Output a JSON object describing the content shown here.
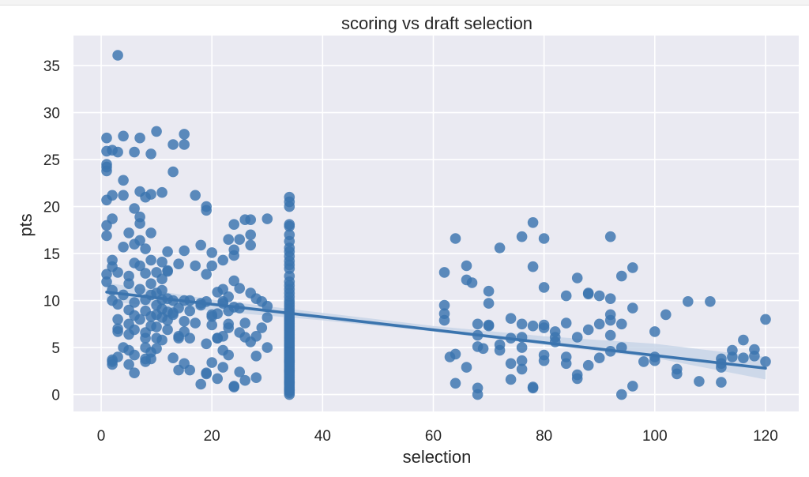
{
  "chart_data": {
    "type": "scatter",
    "title": "scoring vs draft selection",
    "xlabel": "selection",
    "ylabel": "pts",
    "xlim": [
      -5,
      126
    ],
    "ylim": [
      -1.8,
      38.2
    ],
    "xticks": [
      0,
      20,
      40,
      60,
      80,
      100,
      120
    ],
    "yticks": [
      0,
      5,
      10,
      15,
      20,
      25,
      30,
      35
    ],
    "grid": true,
    "colors": {
      "background": "#eaeaf2",
      "grid": "#ffffff",
      "points": "#3b74ae",
      "regression_line": "#3b74ae",
      "confidence_band": "#c6d3e6"
    },
    "regression": {
      "x": [
        1,
        120
      ],
      "y": [
        10.9,
        2.8
      ]
    },
    "confidence_band": {
      "x": [
        1,
        20,
        40,
        60,
        80,
        100,
        120
      ],
      "lower": [
        9.9,
        8.9,
        7.9,
        6.7,
        5.3,
        3.9,
        1.6
      ],
      "upper": [
        11.9,
        10.1,
        8.7,
        7.3,
        6.2,
        5.4,
        4.0
      ]
    },
    "series": [
      {
        "x": [
          3,
          1,
          2,
          4,
          1,
          1,
          1,
          2,
          1,
          2,
          1,
          1,
          2,
          1,
          2,
          1,
          2,
          2,
          3,
          3,
          3,
          3,
          2,
          2,
          3,
          2,
          3,
          1,
          3,
          4,
          4,
          4,
          4,
          4,
          5,
          5,
          5,
          5,
          5,
          5,
          5,
          5,
          6,
          6,
          6,
          6,
          6,
          6,
          6,
          6,
          6,
          7,
          7,
          7,
          7,
          7,
          7,
          7,
          7,
          8,
          8,
          8,
          8,
          8,
          8,
          8,
          8,
          8,
          9,
          9,
          9,
          9,
          9,
          9,
          9,
          9,
          9,
          10,
          10,
          10,
          10,
          10,
          10,
          10,
          11,
          11,
          11,
          11,
          11,
          11,
          11,
          12,
          12,
          12,
          12,
          12,
          12,
          13,
          13,
          13,
          13,
          13,
          14,
          14,
          14,
          14,
          15,
          15,
          15,
          15,
          15,
          15,
          16,
          16,
          16,
          17,
          17,
          17,
          18,
          18,
          18,
          19,
          19,
          19,
          19,
          19,
          19,
          20,
          20,
          20,
          20,
          21,
          21,
          21,
          21,
          22,
          22,
          22,
          22,
          22,
          22,
          23,
          23,
          23,
          23,
          23,
          24,
          24,
          24,
          24,
          24,
          25,
          25,
          25,
          25,
          26,
          26,
          26,
          27,
          27,
          27,
          27,
          28,
          28,
          28,
          29,
          29,
          30,
          30,
          30,
          30,
          24,
          25,
          26,
          27,
          28,
          13,
          22,
          16,
          18,
          21,
          24,
          8,
          10,
          11,
          14,
          15,
          12,
          9,
          20,
          23,
          20,
          19
        ],
        "y": [
          36.1,
          27.3,
          26.0,
          27.5,
          25.9,
          24.5,
          23.8,
          21.2,
          20.7,
          18.7,
          18.0,
          16.9,
          14.3,
          12.8,
          13.6,
          12.0,
          11.1,
          10.0,
          9.6,
          8.0,
          7.0,
          6.7,
          3.7,
          3.2,
          4.0,
          3.5,
          25.8,
          24.2,
          13.0,
          22.8,
          21.2,
          15.7,
          10.6,
          5.0,
          12.6,
          11.8,
          9.0,
          7.5,
          6.4,
          4.7,
          3.2,
          17.2,
          25.8,
          19.8,
          16.0,
          14.0,
          9.8,
          8.4,
          6.9,
          4.2,
          2.3,
          27.3,
          21.6,
          18.9,
          18.2,
          16.4,
          13.7,
          11.2,
          8.0,
          21.0,
          15.5,
          12.9,
          10.1,
          8.9,
          6.0,
          5.0,
          3.8,
          3.5,
          25.6,
          21.3,
          17.2,
          14.3,
          11.8,
          8.3,
          7.3,
          4.5,
          3.8,
          28.0,
          13.0,
          10.8,
          9.5,
          7.2,
          6.0,
          4.9,
          21.5,
          14.1,
          12.3,
          11.1,
          9.1,
          8.2,
          5.8,
          15.2,
          13.1,
          10.2,
          8.8,
          7.9,
          6.9,
          26.6,
          23.7,
          10.0,
          8.7,
          3.9,
          13.9,
          9.2,
          6.2,
          2.6,
          27.7,
          26.6,
          15.3,
          10.0,
          7.8,
          3.3,
          10.0,
          8.9,
          2.6,
          21.2,
          13.7,
          7.6,
          15.9,
          9.5,
          1.1,
          20.0,
          19.6,
          12.8,
          9.9,
          5.4,
          2.3,
          15.1,
          13.7,
          8.3,
          3.4,
          10.9,
          8.6,
          6.0,
          1.7,
          14.3,
          11.2,
          9.7,
          6.2,
          4.7,
          2.9,
          16.5,
          10.4,
          8.9,
          7.5,
          4.2,
          18.1,
          15.4,
          14.8,
          12.1,
          9.3,
          16.5,
          11.3,
          9.2,
          2.4,
          18.6,
          7.6,
          1.5,
          18.6,
          17.0,
          15.9,
          10.8,
          10.2,
          6.2,
          4.1,
          9.9,
          7.1,
          18.7,
          9.4,
          5.0,
          8.2,
          0.8,
          6.6,
          6.1,
          5.6,
          1.8,
          8.5,
          9.9,
          6.0,
          9.7,
          6.0,
          0.9,
          6.6,
          8.5,
          10.1,
          6.0,
          6.7,
          13.2,
          10.6,
          8.5,
          7.1,
          7.4,
          2.2
        ]
      },
      {
        "x": [
          34,
          34,
          34,
          34,
          34,
          34,
          34,
          34,
          34,
          34,
          34,
          34,
          34,
          34,
          34,
          34,
          34,
          34,
          34,
          34,
          34,
          34,
          34,
          34,
          34,
          34,
          34,
          34,
          34,
          34,
          34,
          34,
          34,
          34,
          34,
          34,
          34,
          34,
          34,
          34,
          34,
          34,
          34,
          34,
          34,
          34,
          34,
          34,
          34,
          34,
          34,
          34,
          34,
          34,
          34,
          34,
          34,
          34,
          34,
          34,
          34,
          34,
          34,
          34,
          34,
          34,
          34,
          34,
          34,
          34,
          34
        ],
        "y": [
          21.0,
          20.5,
          20.0,
          18.1,
          17.9,
          17.0,
          16.3,
          15.6,
          15.2,
          14.7,
          14.2,
          13.8,
          13.4,
          12.6,
          12.0,
          11.6,
          11.2,
          10.8,
          10.4,
          10.0,
          9.7,
          9.4,
          9.1,
          8.8,
          8.5,
          8.2,
          8.0,
          7.8,
          7.6,
          7.4,
          7.2,
          7.0,
          6.8,
          6.6,
          6.4,
          6.2,
          6.0,
          5.8,
          5.6,
          5.4,
          5.2,
          5.0,
          4.8,
          4.6,
          4.4,
          4.2,
          4.0,
          3.8,
          3.6,
          3.4,
          3.2,
          3.0,
          2.8,
          2.6,
          2.4,
          2.2,
          2.0,
          1.8,
          1.6,
          1.4,
          1.2,
          1.0,
          0.8,
          0.6,
          0.4,
          0.2,
          0.0,
          0.5,
          1.3,
          2.5,
          3.5
        ]
      },
      {
        "x": [
          62,
          62,
          62,
          62,
          63,
          64,
          64,
          64,
          66,
          66,
          66,
          67,
          68,
          68,
          68,
          68,
          68,
          69,
          70,
          70,
          70,
          70,
          72,
          72,
          72,
          74,
          74,
          74,
          74,
          76,
          76,
          76,
          76,
          76,
          76,
          78,
          78,
          78,
          78,
          78,
          80,
          80,
          80,
          80,
          80,
          80,
          82,
          82,
          82,
          84,
          84,
          84,
          84,
          86,
          86,
          86,
          86,
          88,
          88,
          88,
          88,
          90,
          90,
          90,
          92,
          92,
          92,
          92,
          92,
          92,
          94,
          94,
          94,
          94,
          96,
          96,
          96,
          98,
          100,
          100,
          100,
          102,
          104,
          104,
          106,
          108,
          110,
          112,
          112,
          112,
          112,
          114,
          114,
          116,
          116,
          118,
          118,
          120,
          120
        ],
        "y": [
          13.0,
          9.5,
          8.6,
          7.9,
          4.0,
          16.6,
          4.3,
          1.2,
          13.7,
          12.2,
          2.9,
          11.9,
          7.5,
          6.3,
          5.1,
          0.7,
          0.0,
          4.9,
          11.0,
          9.7,
          7.4,
          7.3,
          15.6,
          5.3,
          4.7,
          8.1,
          6.0,
          3.3,
          1.6,
          16.8,
          7.5,
          6.1,
          5.0,
          3.6,
          2.7,
          18.3,
          13.6,
          7.3,
          0.7,
          0.8,
          16.6,
          11.4,
          7.4,
          7.1,
          4.2,
          3.6,
          6.1,
          6.7,
          5.6,
          10.5,
          7.6,
          4.0,
          3.3,
          12.4,
          6.1,
          2.1,
          1.7,
          10.8,
          10.7,
          6.9,
          3.1,
          10.5,
          7.5,
          3.9,
          16.8,
          10.2,
          8.5,
          7.9,
          6.3,
          4.6,
          12.6,
          7.5,
          5.0,
          0.0,
          13.5,
          9.2,
          0.9,
          3.5,
          6.7,
          4.0,
          3.6,
          8.5,
          2.7,
          2.2,
          9.9,
          1.4,
          9.9,
          3.8,
          3.3,
          2.9,
          1.3,
          4.7,
          4.0,
          5.8,
          3.9,
          4.8,
          4.1,
          8.0,
          3.5
        ]
      }
    ]
  }
}
